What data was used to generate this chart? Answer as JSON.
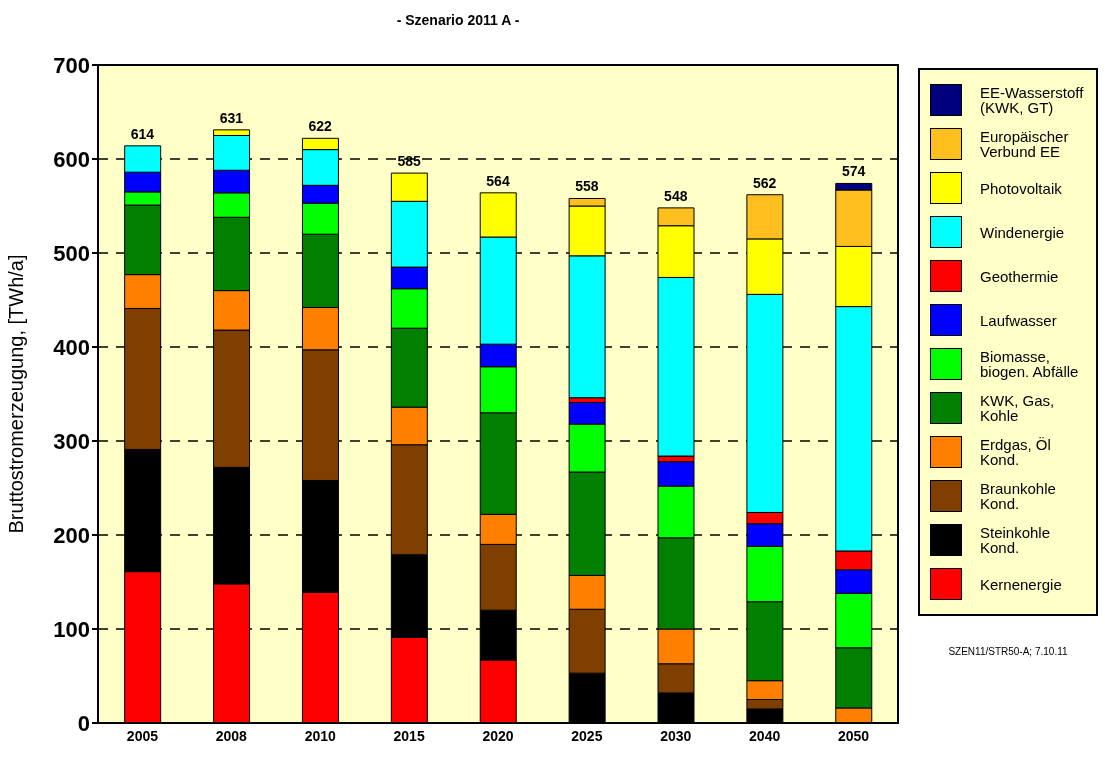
{
  "chart_data": {
    "type": "bar",
    "title": "- Szenario 2011 A -",
    "ylabel": "Bruttostromerzeugung, [TWh/a]",
    "stacked": true,
    "categories": [
      "2005",
      "2008",
      "2010",
      "2015",
      "2020",
      "2025",
      "2030",
      "2040",
      "2050"
    ],
    "series": [
      {
        "name": "Kernenergie",
        "color": "#ff0000",
        "values": [
          161,
          148,
          139,
          91,
          67,
          0,
          0,
          0,
          0
        ]
      },
      {
        "name": "Steinkohle Kond.",
        "color": "#000000",
        "values": [
          130,
          124,
          119,
          88,
          53,
          53,
          32,
          15,
          0
        ]
      },
      {
        "name": "Braunkohle Kond.",
        "color": "#7f3f00",
        "values": [
          150,
          146,
          139,
          117,
          70,
          68,
          31,
          10,
          0
        ]
      },
      {
        "name": "Erdgas, Öl Kond.",
        "color": "#ff8000",
        "values": [
          36,
          42,
          45,
          40,
          32,
          36,
          37,
          20,
          16
        ]
      },
      {
        "name": "KWK, Gas, Kohle",
        "color": "#007f00",
        "values": [
          74,
          78,
          78,
          84,
          108,
          110,
          97,
          84,
          64
        ]
      },
      {
        "name": "Biomasse, biogen. Abfälle",
        "color": "#00ff00",
        "values": [
          14,
          26,
          33,
          42,
          49,
          51,
          55,
          59,
          58
        ]
      },
      {
        "name": "Laufwasser",
        "color": "#0000ff",
        "values": [
          21,
          24,
          19,
          23,
          24,
          23,
          26,
          24,
          25
        ]
      },
      {
        "name": "Geothermie",
        "color": "#ff0000",
        "values": [
          0,
          0,
          0,
          0,
          0,
          5,
          6,
          12,
          20
        ]
      },
      {
        "name": "Windenergie",
        "color": "#00ffff",
        "values": [
          28,
          37,
          38,
          70,
          114,
          151,
          190,
          232,
          260
        ]
      },
      {
        "name": "Photovoltaik",
        "color": "#ffff00",
        "values": [
          0,
          6,
          12,
          30,
          47,
          53,
          55,
          59,
          64
        ]
      },
      {
        "name": "Europäischer Verbund EE",
        "color": "#ffbf1f",
        "values": [
          0,
          0,
          0,
          0,
          0,
          8,
          19,
          47,
          60
        ]
      },
      {
        "name": "EE-Wasserstoff (KWK, GT)",
        "color": "#00007f",
        "values": [
          0,
          0,
          0,
          0,
          0,
          0,
          0,
          0,
          7
        ]
      }
    ],
    "totals": [
      "614",
      "631",
      "622",
      "585",
      "564",
      "558",
      "548",
      "562",
      "574"
    ],
    "ylim": [
      0,
      700
    ],
    "yticks": [
      0,
      100,
      200,
      300,
      400,
      500,
      600,
      700
    ],
    "grid": "y",
    "legend": "right",
    "annotations": [
      "SZEN11/STR50-A; 7.10.11"
    ]
  }
}
